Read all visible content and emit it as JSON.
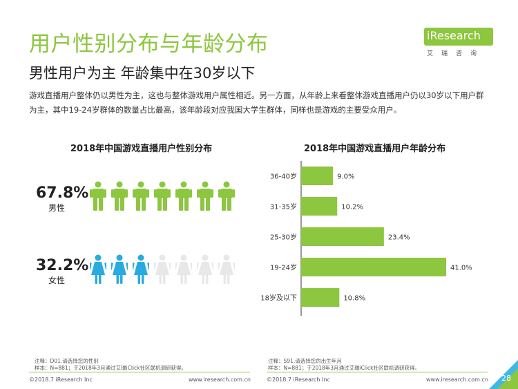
{
  "header": {
    "title": "用户性别分布与年龄分布",
    "subtitle": "男性用户为主 年龄集中在30岁以下",
    "description": "游戏直播用户整体仍以男性为主，这也与整体游戏用户属性相近。另一方面，从年龄上来看整体游戏直播用户仍以30岁以下用户群为主，其中19-24岁群体的数量占比最高，该年龄段对应我国大学生群体，同样也是游戏的主要受众用户。"
  },
  "logo": {
    "name": "iResearch",
    "subtitle": "艾瑞咨询"
  },
  "gender_chart": {
    "title": "2018年中国游戏直播用户性别分布",
    "male": {
      "value": "67.8%",
      "label": "男性",
      "icons_filled": 7,
      "icons_total": 7,
      "color": "#8dc63f"
    },
    "female": {
      "value": "32.2%",
      "label": "女性",
      "icons_filled": 3,
      "icons_total": 7,
      "color": "#29abe2",
      "empty_color": "#e8e8e8"
    }
  },
  "age_chart_title": "2018年中国游戏直播用户年龄分布",
  "chart_data": [
    {
      "type": "bar",
      "orientation": "horizontal",
      "title": "2018年中国游戏直播用户年龄分布",
      "categories": [
        "36-40岁",
        "31-35岁",
        "25-30岁",
        "19-24岁",
        "18岁及以下"
      ],
      "values": [
        9.0,
        10.2,
        23.4,
        41.0,
        10.8
      ],
      "value_labels": [
        "9.0%",
        "10.2%",
        "23.4%",
        "41.0%",
        "10.8%"
      ],
      "xlim": [
        0,
        41
      ],
      "grid": false,
      "color": "#8dc63f"
    }
  ],
  "notes": {
    "left_line1": "注释：D01.请选择您的性别",
    "left_line2": "样本：N=881；于2018年3月通过艾瑞iClick社区联机调研获得。",
    "right_line1": "注释：S91.请选择您的出生年月",
    "right_line2": "样本：N=881；于2018年3月通过艾瑞iClick社区联机调研获得。"
  },
  "footer": {
    "left_copyright": "©2018.7 iResearch Inc",
    "left_url": "www.iresearch.com.cn",
    "right_copyright": "©2018.7 iResearch Inc",
    "right_url": "www.iresearch.com.cn",
    "page_number": "28"
  }
}
